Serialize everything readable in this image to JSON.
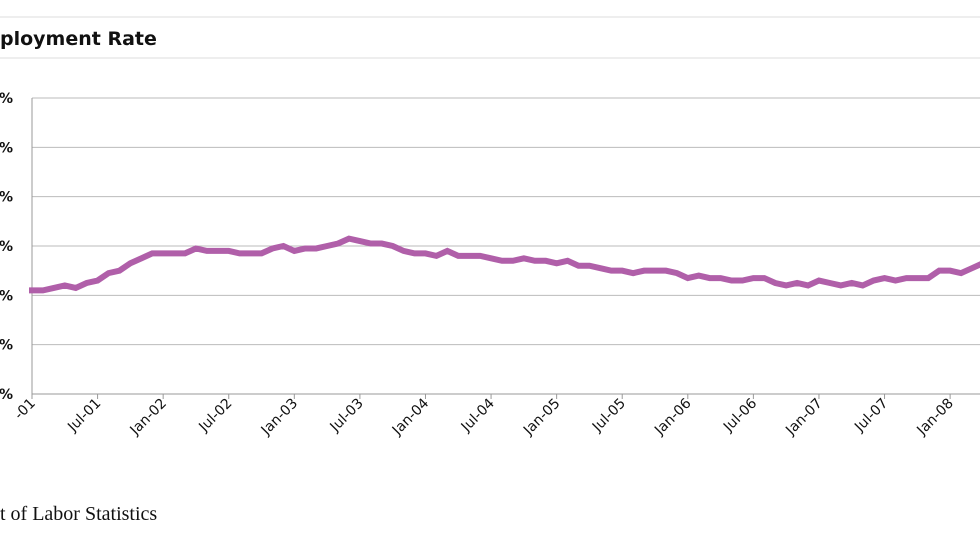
{
  "chart_data": {
    "type": "line",
    "title": "ployment Rate",
    "source": "t of Labor Statistics",
    "categories": [
      "-01",
      null,
      null,
      null,
      null,
      null,
      "Jul-01",
      null,
      null,
      null,
      null,
      null,
      "Jan-02",
      null,
      null,
      null,
      null,
      null,
      "Jul-02",
      null,
      null,
      null,
      null,
      null,
      "Jan-03",
      null,
      null,
      null,
      null,
      null,
      "Jul-03",
      null,
      null,
      null,
      null,
      null,
      "Jan-04",
      null,
      null,
      null,
      null,
      null,
      "Jul-04",
      null,
      null,
      null,
      null,
      null,
      "Jan-05",
      null,
      null,
      null,
      null,
      null,
      "Jul-05",
      null,
      null,
      null,
      null,
      null,
      "Jan-06",
      null,
      null,
      null,
      null,
      null,
      "Jul-06",
      null,
      null,
      null,
      null,
      null,
      "Jan-07",
      null,
      null,
      null,
      null,
      null,
      "Jul-07",
      null,
      null,
      null,
      null,
      null,
      "Jan-08",
      null,
      null,
      null
    ],
    "series": [
      {
        "color": "#b05fa9",
        "values": [
          4.2,
          4.2,
          4.3,
          4.4,
          4.3,
          4.5,
          4.6,
          4.9,
          5.0,
          5.3,
          5.5,
          5.7,
          5.7,
          5.7,
          5.7,
          5.9,
          5.8,
          5.8,
          5.8,
          5.7,
          5.7,
          5.7,
          5.9,
          6.0,
          5.8,
          5.9,
          5.9,
          6.0,
          6.1,
          6.3,
          6.2,
          6.1,
          6.1,
          6.0,
          5.8,
          5.7,
          5.7,
          5.6,
          5.8,
          5.6,
          5.6,
          5.6,
          5.5,
          5.4,
          5.4,
          5.5,
          5.4,
          5.4,
          5.3,
          5.4,
          5.2,
          5.2,
          5.1,
          5.0,
          5.0,
          4.9,
          5.0,
          5.0,
          5.0,
          4.9,
          4.7,
          4.8,
          4.7,
          4.7,
          4.6,
          4.6,
          4.7,
          4.7,
          4.5,
          4.4,
          4.5,
          4.4,
          4.6,
          4.5,
          4.4,
          4.5,
          4.4,
          4.6,
          4.7,
          4.6,
          4.7,
          4.7,
          4.7,
          5.0,
          5.0,
          4.9,
          5.1,
          5.3
        ]
      }
    ],
    "ylim": [
      0,
      12
    ],
    "yticks": [
      {
        "value": 0,
        "label": "%"
      },
      {
        "value": 2,
        "label": "%"
      },
      {
        "value": 4,
        "label": "%"
      },
      {
        "value": 6,
        "label": "%"
      },
      {
        "value": 8,
        "label": "%"
      },
      {
        "value": 10,
        "label": "%"
      },
      {
        "value": 12,
        "label": "%"
      }
    ],
    "grid": true
  }
}
